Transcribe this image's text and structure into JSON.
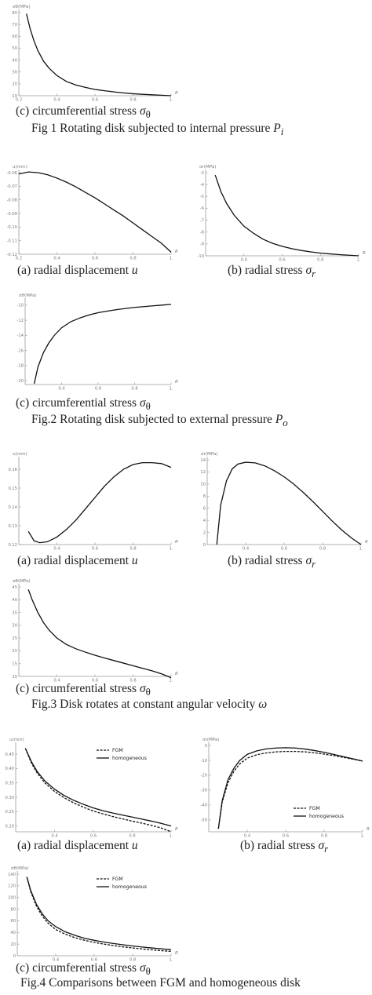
{
  "figures": [
    {
      "caption": "Fig 1 Rotating disk subjected to internal pressure",
      "caption_symbol": "P",
      "caption_subscript": "i",
      "panels": [
        {
          "caption": "(c) circumferential stress",
          "caption_symbol": "σ",
          "caption_subscript": "θ"
        }
      ]
    },
    {
      "caption": "Fig.2 Rotating disk subjected to external pressure",
      "caption_symbol": "P",
      "caption_subscript": "o",
      "panels": [
        {
          "caption": "(a) radial displacement",
          "caption_symbol": "u",
          "caption_subscript": ""
        },
        {
          "caption": "(b) radial stress",
          "caption_symbol": "σ",
          "caption_subscript": "r"
        },
        {
          "caption": "(c) circumferential stress",
          "caption_symbol": "σ",
          "caption_subscript": "θ"
        }
      ]
    },
    {
      "caption": "Fig.3 Disk rotates at constant angular velocity",
      "caption_symbol": "ω",
      "caption_subscript": "",
      "panels": [
        {
          "caption": "(a) radial displacement",
          "caption_symbol": "u",
          "caption_subscript": ""
        },
        {
          "caption": "(b) radial stress",
          "caption_symbol": "σ",
          "caption_subscript": "r"
        },
        {
          "caption": "(c) circumferential stress",
          "caption_symbol": "σ",
          "caption_subscript": "θ"
        }
      ]
    },
    {
      "caption": "Fig.4 Comparisons between FGM and homogeneous disk",
      "caption_symbol": "",
      "caption_subscript": "",
      "panels": [
        {
          "caption": "(a) radial displacement",
          "caption_symbol": "u",
          "caption_subscript": ""
        },
        {
          "caption": "(b) radial stress",
          "caption_symbol": "σ",
          "caption_subscript": "r"
        },
        {
          "caption": "(c) circumferential stress",
          "caption_symbol": "σ",
          "caption_subscript": "θ"
        }
      ]
    }
  ],
  "chart_data": [
    {
      "type": "line",
      "xlabel": "R",
      "ylabel": "σθ(MPa)",
      "xlim": [
        0.2,
        1.0
      ],
      "ylim": [
        10,
        80
      ],
      "xticks": [
        "0.2",
        "0.4",
        "0.6",
        "0.8",
        "1."
      ],
      "yticks": [
        "10",
        "20",
        "30",
        "40",
        "50",
        "60",
        "70",
        "80"
      ],
      "series": [
        {
          "style": "solid",
          "x": [
            0.24,
            0.26,
            0.28,
            0.3,
            0.33,
            0.36,
            0.4,
            0.45,
            0.5,
            0.55,
            0.6,
            0.65,
            0.7,
            0.75,
            0.8,
            0.85,
            0.9,
            0.95,
            1.0
          ],
          "y": [
            79,
            66,
            56,
            48,
            39,
            33,
            27,
            22,
            19,
            17,
            15.3,
            14.2,
            13.2,
            12.4,
            11.7,
            11.2,
            10.8,
            10.4,
            10
          ]
        }
      ]
    },
    {
      "type": "line",
      "xlabel": "R",
      "ylabel": "u(mm)",
      "xlim": [
        0.2,
        1.0
      ],
      "ylim": [
        -0.12,
        -0.06
      ],
      "xticks": [
        "0.2",
        "0.4",
        "0.6",
        "0.8",
        "1."
      ],
      "yticks": [
        "-0.06",
        "-0.07",
        "-0.08",
        "-0.09",
        "-0.10",
        "-0.11",
        "-0.12"
      ],
      "series": [
        {
          "style": "solid",
          "x": [
            0.2,
            0.25,
            0.3,
            0.35,
            0.4,
            0.45,
            0.5,
            0.55,
            0.6,
            0.65,
            0.7,
            0.75,
            0.8,
            0.85,
            0.9,
            0.95,
            1.0
          ],
          "y": [
            -0.061,
            -0.0595,
            -0.06,
            -0.0615,
            -0.064,
            -0.067,
            -0.0705,
            -0.0745,
            -0.0785,
            -0.083,
            -0.0875,
            -0.092,
            -0.097,
            -0.102,
            -0.107,
            -0.112,
            -0.1185
          ]
        }
      ]
    },
    {
      "type": "line",
      "xlabel": "R",
      "ylabel": "σr(MPa)",
      "xlim": [
        0.2,
        1.0
      ],
      "ylim": [
        -10,
        -3
      ],
      "xticks": [
        "0.4",
        "0.6",
        "0.8",
        "1."
      ],
      "yticks": [
        "-3",
        "-4",
        "-5",
        "-6",
        "-7",
        "-8",
        "-9",
        "-10"
      ],
      "series": [
        {
          "style": "solid",
          "x": [
            0.25,
            0.28,
            0.31,
            0.35,
            0.4,
            0.45,
            0.5,
            0.55,
            0.6,
            0.65,
            0.7,
            0.75,
            0.8,
            0.85,
            0.9,
            0.95,
            1.0
          ],
          "y": [
            -3.2,
            -4.6,
            -5.6,
            -6.6,
            -7.5,
            -8.1,
            -8.6,
            -8.95,
            -9.2,
            -9.4,
            -9.55,
            -9.67,
            -9.77,
            -9.84,
            -9.9,
            -9.95,
            -10
          ]
        }
      ]
    },
    {
      "type": "line",
      "xlabel": "R",
      "ylabel": "σθ(MPa)",
      "xlim": [
        0.2,
        1.0
      ],
      "ylim": [
        -20.5,
        -9.5
      ],
      "xticks": [
        "0.4",
        "0.6",
        "0.8",
        "1."
      ],
      "yticks": [
        "-10",
        "-12",
        "-14",
        "-16",
        "-18",
        "-20"
      ],
      "series": [
        {
          "style": "solid",
          "x": [
            0.25,
            0.27,
            0.3,
            0.33,
            0.36,
            0.4,
            0.45,
            0.5,
            0.55,
            0.6,
            0.65,
            0.7,
            0.75,
            0.8,
            0.85,
            0.9,
            0.95,
            1.0
          ],
          "y": [
            -20.4,
            -18.2,
            -16.3,
            -15.0,
            -14.0,
            -13.0,
            -12.2,
            -11.7,
            -11.3,
            -11.0,
            -10.8,
            -10.6,
            -10.45,
            -10.3,
            -10.2,
            -10.1,
            -10.0,
            -9.9
          ]
        }
      ]
    },
    {
      "type": "line",
      "xlabel": "R",
      "ylabel": "u(mm)",
      "xlim": [
        0.2,
        1.0
      ],
      "ylim": [
        0.12,
        0.165
      ],
      "xticks": [
        "0.4",
        "0.6",
        "0.8",
        "1."
      ],
      "yticks": [
        "0.12",
        "0.13",
        "0.14",
        "0.15",
        "0.16"
      ],
      "series": [
        {
          "style": "solid",
          "x": [
            0.25,
            0.28,
            0.31,
            0.35,
            0.4,
            0.45,
            0.5,
            0.55,
            0.6,
            0.65,
            0.7,
            0.75,
            0.8,
            0.85,
            0.9,
            0.95,
            1.0
          ],
          "y": [
            0.127,
            0.122,
            0.121,
            0.1215,
            0.124,
            0.128,
            0.133,
            0.139,
            0.145,
            0.151,
            0.156,
            0.16,
            0.1625,
            0.1635,
            0.1635,
            0.163,
            0.161
          ]
        }
      ]
    },
    {
      "type": "line",
      "xlabel": "R",
      "ylabel": "σr(MPa)",
      "xlim": [
        0.2,
        1.0
      ],
      "ylim": [
        0,
        14
      ],
      "xticks": [
        "0.4",
        "0.6",
        "0.8",
        "1."
      ],
      "yticks": [
        "0",
        "2",
        "4",
        "6",
        "8",
        "10",
        "12",
        "14"
      ],
      "series": [
        {
          "style": "solid",
          "x": [
            0.25,
            0.27,
            0.3,
            0.33,
            0.36,
            0.4,
            0.45,
            0.5,
            0.55,
            0.6,
            0.65,
            0.7,
            0.75,
            0.8,
            0.85,
            0.9,
            0.95,
            1.0
          ],
          "y": [
            0,
            6.5,
            10.5,
            12.5,
            13.3,
            13.6,
            13.5,
            13.0,
            12.2,
            11.2,
            10.0,
            8.6,
            7.1,
            5.5,
            3.9,
            2.4,
            1.1,
            0
          ]
        }
      ]
    },
    {
      "type": "line",
      "xlabel": "R",
      "ylabel": "σθ(MPa)",
      "xlim": [
        0.2,
        1.0
      ],
      "ylim": [
        10,
        45
      ],
      "xticks": [
        "0.4",
        "0.6",
        "0.8",
        "1."
      ],
      "yticks": [
        "10",
        "15",
        "20",
        "25",
        "30",
        "35",
        "40",
        "45"
      ],
      "series": [
        {
          "style": "solid",
          "x": [
            0.25,
            0.27,
            0.3,
            0.33,
            0.36,
            0.4,
            0.45,
            0.5,
            0.55,
            0.6,
            0.65,
            0.7,
            0.75,
            0.8,
            0.85,
            0.9,
            0.95,
            1.0
          ],
          "y": [
            44,
            40,
            35,
            31,
            28,
            25,
            22.5,
            20.8,
            19.5,
            18.3,
            17.2,
            16.2,
            15.2,
            14.2,
            13.2,
            12.2,
            11.0,
            9.5
          ]
        }
      ]
    },
    {
      "type": "line",
      "xlabel": "R",
      "ylabel": "u(mm)",
      "xlim": [
        0.2,
        1.0
      ],
      "ylim": [
        0.18,
        0.48
      ],
      "xticks": [
        "0.4",
        "0.6",
        "0.8",
        "1."
      ],
      "yticks": [
        "0.45",
        "0.40",
        "0.35",
        "0.30",
        "0.25",
        "0.20"
      ],
      "legend": "top-right",
      "series": [
        {
          "name": "FGM",
          "style": "dashed",
          "x": [
            0.25,
            0.28,
            0.31,
            0.35,
            0.4,
            0.45,
            0.5,
            0.55,
            0.6,
            0.65,
            0.7,
            0.75,
            0.8,
            0.85,
            0.9,
            0.95,
            1.0
          ],
          "y": [
            0.47,
            0.42,
            0.385,
            0.35,
            0.32,
            0.298,
            0.28,
            0.265,
            0.252,
            0.242,
            0.233,
            0.225,
            0.217,
            0.21,
            0.202,
            0.193,
            0.18
          ]
        },
        {
          "name": "homogeneous",
          "style": "solid",
          "x": [
            0.25,
            0.28,
            0.31,
            0.35,
            0.4,
            0.45,
            0.5,
            0.55,
            0.6,
            0.65,
            0.7,
            0.75,
            0.8,
            0.85,
            0.9,
            0.95,
            1.0
          ],
          "y": [
            0.47,
            0.425,
            0.39,
            0.357,
            0.328,
            0.306,
            0.289,
            0.275,
            0.263,
            0.253,
            0.245,
            0.238,
            0.231,
            0.224,
            0.217,
            0.209,
            0.2
          ]
        }
      ]
    },
    {
      "type": "line",
      "xlabel": "R",
      "ylabel": "σr(MPa)",
      "xlim": [
        0.2,
        1.0
      ],
      "ylim": [
        -58,
        0
      ],
      "xticks": [
        "0.4",
        "0.6",
        "0.8",
        "1."
      ],
      "yticks": [
        "0",
        "-10",
        "-20",
        "-30",
        "-40",
        "-50"
      ],
      "legend": "bottom-right",
      "series": [
        {
          "name": "FGM",
          "style": "dashed",
          "x": [
            0.25,
            0.27,
            0.3,
            0.33,
            0.36,
            0.4,
            0.45,
            0.5,
            0.55,
            0.6,
            0.65,
            0.7,
            0.75,
            0.8,
            0.85,
            0.9,
            0.95,
            1.0
          ],
          "y": [
            -56,
            -38,
            -25,
            -17.5,
            -12.5,
            -8.5,
            -6.2,
            -5.0,
            -4.3,
            -4.0,
            -4.0,
            -4.3,
            -4.9,
            -5.8,
            -6.8,
            -8.0,
            -9.2,
            -10.5
          ]
        },
        {
          "name": "homogeneous",
          "style": "solid",
          "x": [
            0.25,
            0.27,
            0.3,
            0.33,
            0.36,
            0.4,
            0.45,
            0.5,
            0.55,
            0.6,
            0.65,
            0.7,
            0.75,
            0.8,
            0.85,
            0.9,
            0.95,
            1.0
          ],
          "y": [
            -56,
            -37,
            -23,
            -15.5,
            -10.2,
            -6.0,
            -3.6,
            -2.3,
            -1.7,
            -1.5,
            -1.7,
            -2.4,
            -3.4,
            -4.6,
            -6.0,
            -7.5,
            -9.0,
            -10.5
          ]
        }
      ]
    },
    {
      "type": "line",
      "xlabel": "R",
      "ylabel": "σθ(MPa)",
      "xlim": [
        0.2,
        1.0
      ],
      "ylim": [
        0,
        140
      ],
      "xticks": [
        "0.4",
        "0.6",
        "0.8",
        "1."
      ],
      "yticks": [
        "0",
        "20",
        "40",
        "60",
        "80",
        "100",
        "120",
        "140"
      ],
      "legend": "top-right",
      "series": [
        {
          "name": "FGM",
          "style": "dashed",
          "x": [
            0.25,
            0.27,
            0.3,
            0.33,
            0.36,
            0.4,
            0.45,
            0.5,
            0.55,
            0.6,
            0.65,
            0.7,
            0.75,
            0.8,
            0.85,
            0.9,
            0.95,
            1.0
          ],
          "y": [
            135,
            110,
            85,
            68,
            56,
            45,
            37,
            31,
            26.5,
            23,
            20,
            17.5,
            15.3,
            13.4,
            11.7,
            10.2,
            8.8,
            7.5
          ]
        },
        {
          "name": "homogeneous",
          "style": "solid",
          "x": [
            0.25,
            0.27,
            0.3,
            0.33,
            0.36,
            0.4,
            0.45,
            0.5,
            0.55,
            0.6,
            0.65,
            0.7,
            0.75,
            0.8,
            0.85,
            0.9,
            0.95,
            1.0
          ],
          "y": [
            135,
            112,
            88,
            72,
            60,
            50,
            41,
            35,
            30,
            26.5,
            23.5,
            21,
            18.8,
            16.8,
            15,
            13.4,
            12,
            10.5
          ]
        }
      ]
    }
  ]
}
